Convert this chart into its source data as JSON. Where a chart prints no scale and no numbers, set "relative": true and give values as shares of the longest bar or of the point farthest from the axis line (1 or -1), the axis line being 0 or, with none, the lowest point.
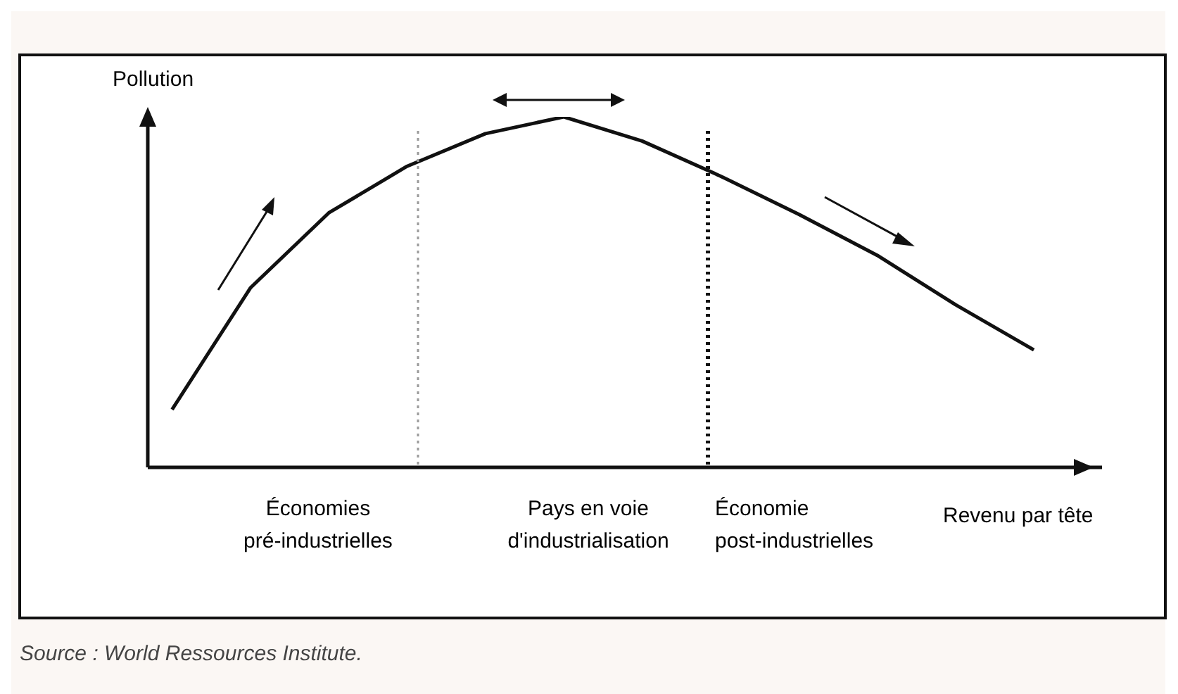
{
  "chart_data": {
    "type": "line",
    "relative": true,
    "xlabel": "Revenu par tête",
    "ylabel": "Pollution",
    "categories": [
      null,
      null,
      null,
      null,
      null,
      null,
      null,
      null,
      null,
      null,
      null,
      null
    ],
    "series": [
      {
        "color": "#111111",
        "values": [
          0.165,
          0.512,
          0.726,
          0.859,
          0.952,
          1,
          0.931,
          0.831,
          0.722,
          0.605,
          0.464,
          0.335
        ]
      }
    ],
    "annotations": [
      "Économies pré-industrielles",
      "Pays en voie d'industrialisation",
      "Économie post-industrielles",
      "Source :  World Ressources Institute."
    ],
    "marker": "none",
    "line_style": "solid",
    "grid": false,
    "legend": false
  }
}
